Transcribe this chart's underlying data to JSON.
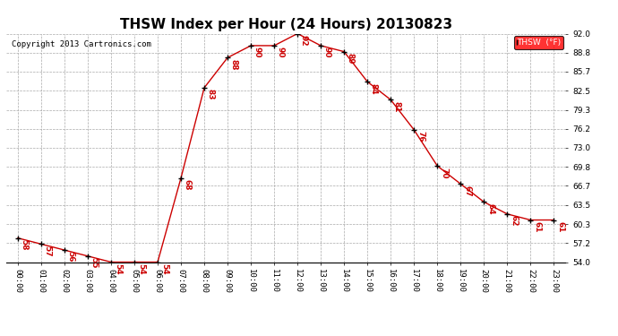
{
  "title": "THSW Index per Hour (24 Hours) 20130823",
  "copyright": "Copyright 2013 Cartronics.com",
  "legend_label": "THSW  (°F)",
  "hours": [
    0,
    1,
    2,
    3,
    4,
    5,
    6,
    7,
    8,
    9,
    10,
    11,
    12,
    13,
    14,
    15,
    16,
    17,
    18,
    19,
    20,
    21,
    22,
    23
  ],
  "values": [
    58,
    57,
    56,
    55,
    54,
    54,
    54,
    68,
    83,
    88,
    90,
    90,
    92,
    90,
    89,
    84,
    81,
    76,
    70,
    67,
    64,
    62,
    61,
    61
  ],
  "xlabels": [
    "00:00",
    "01:00",
    "02:00",
    "03:00",
    "04:00",
    "05:00",
    "06:00",
    "07:00",
    "08:00",
    "09:00",
    "10:00",
    "11:00",
    "12:00",
    "13:00",
    "14:00",
    "15:00",
    "16:00",
    "17:00",
    "18:00",
    "19:00",
    "20:00",
    "21:00",
    "22:00",
    "23:00"
  ],
  "ylim": [
    54.0,
    92.0
  ],
  "yticks": [
    54.0,
    57.2,
    60.3,
    63.5,
    66.7,
    69.8,
    73.0,
    76.2,
    79.3,
    82.5,
    85.7,
    88.8,
    92.0
  ],
  "line_color": "#cc0000",
  "marker_color": "#000000",
  "bg_color": "#ffffff",
  "grid_color": "#aaaaaa",
  "title_fontsize": 11,
  "annot_fontsize": 6.5,
  "tick_fontsize": 6.5,
  "copyright_fontsize": 6.5
}
